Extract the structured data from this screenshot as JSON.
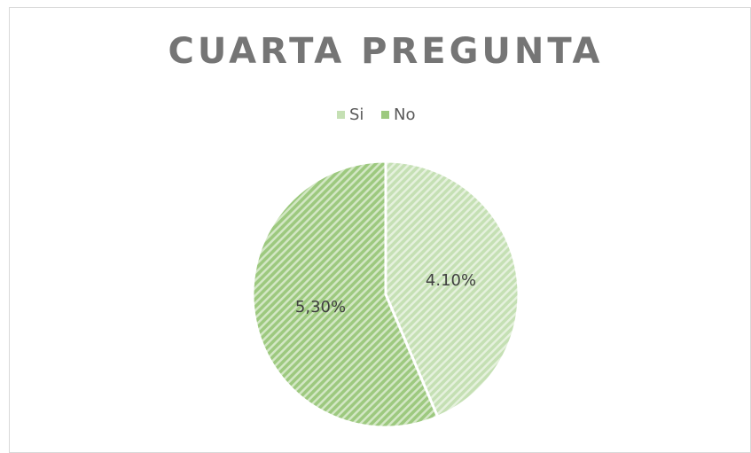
{
  "chart_data": {
    "type": "pie",
    "title": "CUARTA PREGUNTA",
    "categories": [
      "Si",
      "No"
    ],
    "values": [
      4.1,
      5.3
    ],
    "value_labels": [
      "4.10%",
      "5,30%"
    ],
    "colors": [
      "#c5e0b4",
      "#9dc97f"
    ],
    "legend": "top"
  }
}
